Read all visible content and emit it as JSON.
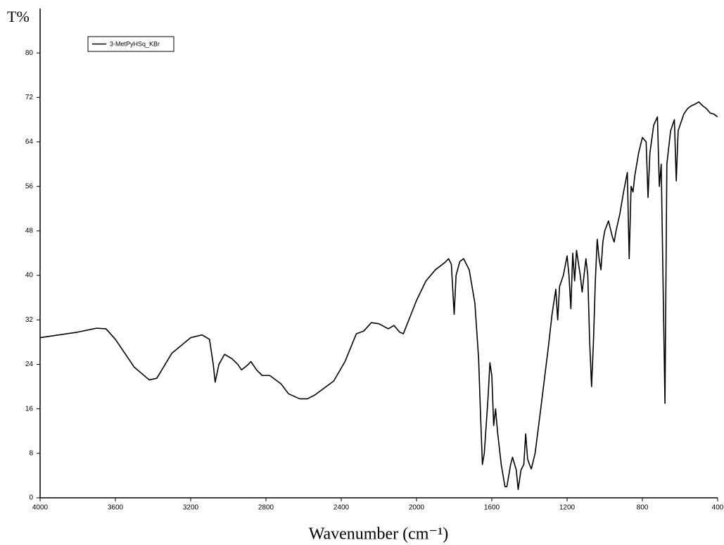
{
  "chart_data": {
    "type": "line",
    "y_label": "T%",
    "x_label": "Wavenumber (cm⁻¹)",
    "x": [
      4000,
      3800,
      3700,
      3650,
      3600,
      3500,
      3420,
      3380,
      3300,
      3200,
      3140,
      3100,
      3080,
      3070,
      3050,
      3020,
      2980,
      2950,
      2930,
      2900,
      2880,
      2850,
      2820,
      2780,
      2720,
      2680,
      2620,
      2580,
      2540,
      2500,
      2440,
      2380,
      2320,
      2280,
      2240,
      2200,
      2150,
      2120,
      2090,
      2070,
      2000,
      1950,
      1900,
      1850,
      1830,
      1815,
      1800,
      1790,
      1770,
      1750,
      1720,
      1690,
      1670,
      1660,
      1650,
      1640,
      1620,
      1610,
      1600,
      1590,
      1580,
      1570,
      1550,
      1530,
      1520,
      1500,
      1490,
      1470,
      1460,
      1445,
      1430,
      1420,
      1410,
      1400,
      1390,
      1370,
      1340,
      1300,
      1280,
      1260,
      1250,
      1240,
      1220,
      1200,
      1190,
      1180,
      1170,
      1160,
      1150,
      1130,
      1120,
      1100,
      1090,
      1080,
      1070,
      1060,
      1050,
      1040,
      1030,
      1020,
      1010,
      1000,
      980,
      960,
      950,
      940,
      920,
      900,
      880,
      870,
      860,
      850,
      840,
      820,
      800,
      780,
      770,
      760,
      740,
      720,
      710,
      700,
      680,
      670,
      650,
      630,
      620,
      610,
      580,
      560,
      540,
      520,
      500,
      480,
      460,
      440,
      420,
      400
    ],
    "series": [
      {
        "name": "3-MetPyHSq_KBr",
        "color": "#000000",
        "values": [
          28.8,
          29.8,
          30.5,
          30.4,
          28.5,
          23.5,
          21.2,
          21.5,
          26,
          28.8,
          29.3,
          28.5,
          24,
          20.8,
          24,
          25.8,
          25,
          24,
          23,
          23.8,
          24.5,
          23,
          22,
          22,
          20.5,
          18.7,
          17.8,
          17.8,
          18.5,
          19.5,
          21,
          24.5,
          29.5,
          30,
          31.5,
          31.3,
          30.4,
          31,
          29.8,
          29.5,
          35.5,
          39,
          41,
          42.3,
          43,
          42,
          33,
          40,
          42.5,
          43,
          41,
          35,
          25,
          15,
          6,
          8,
          18,
          24.3,
          22,
          13,
          16,
          12,
          6,
          2,
          2,
          6,
          7.3,
          5,
          1.5,
          5,
          6,
          11.5,
          7,
          6,
          5.2,
          8,
          16,
          27,
          33,
          37.5,
          32,
          38,
          40,
          43.5,
          40,
          34,
          44,
          39,
          44.5,
          40,
          37,
          43,
          40,
          28,
          20,
          28,
          39,
          46.5,
          43,
          41,
          46,
          48,
          49.8,
          47,
          46,
          48,
          51,
          55,
          58.5,
          43,
          56,
          55,
          58,
          62,
          64.8,
          64,
          54,
          62,
          67,
          68.5,
          56,
          60,
          17,
          60,
          66,
          68,
          57,
          66,
          69,
          70,
          70.5,
          70.8,
          71.2,
          70.5,
          70,
          69.2,
          69,
          68.5
        ]
      }
    ],
    "xlim": [
      4000,
      400
    ],
    "xticks": [
      4000,
      3600,
      3200,
      2800,
      2400,
      2000,
      1600,
      1200,
      800,
      400
    ],
    "ylim": [
      0,
      88
    ],
    "yticks": [
      0,
      8,
      16,
      24,
      32,
      40,
      48,
      56,
      64,
      72,
      80
    ],
    "legend": "upper left",
    "grid": false
  }
}
